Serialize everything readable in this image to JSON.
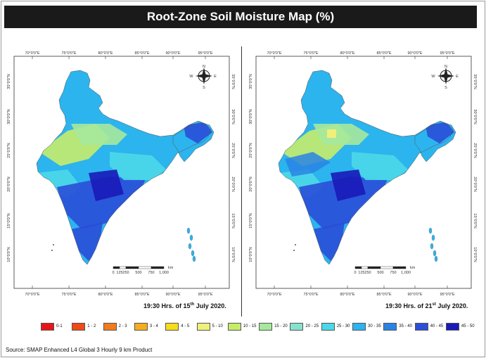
{
  "title": "Root-Zone Soil Moisture Map (%)",
  "maps": [
    {
      "caption_prefix": "19:30 Hrs. of 15",
      "caption_sup": "th",
      "caption_suffix": " July 2020."
    },
    {
      "caption_prefix": "19:30 Hrs. of 21",
      "caption_sup": "st",
      "caption_suffix": " July 2020."
    }
  ],
  "longitude_ticks": [
    "70°0'0\"E",
    "75°0'0\"E",
    "80°0'0\"E",
    "85°0'0\"E",
    "90°0'0\"E",
    "95°0'0\"E"
  ],
  "latitude_ticks": [
    "35°0'0\"N",
    "30°0'0\"N",
    "25°0'0\"N",
    "20°0'0\"N",
    "15°0'0\"N",
    "10°0'0\"N"
  ],
  "compass": {
    "n": "N",
    "s": "S",
    "e": "E",
    "w": "W"
  },
  "scale_bar": {
    "labels": [
      "0",
      "125",
      "250",
      "500",
      "750",
      "1,000"
    ],
    "unit": "km"
  },
  "legend": [
    {
      "label": "0-1",
      "color": "#e8141c"
    },
    {
      "label": "1 - 2",
      "color": "#f04a16"
    },
    {
      "label": "2 - 3",
      "color": "#f27c1c"
    },
    {
      "label": "3 - 4",
      "color": "#f4ac20"
    },
    {
      "label": "4 - 5",
      "color": "#f6dc1a"
    },
    {
      "label": "5 - 10",
      "color": "#eef07a"
    },
    {
      "label": "10 - 15",
      "color": "#c6ec6a"
    },
    {
      "label": "15 - 20",
      "color": "#a6e89c"
    },
    {
      "label": "20 - 25",
      "color": "#86e2cc"
    },
    {
      "label": "25 - 30",
      "color": "#4cd8e8"
    },
    {
      "label": "30 - 35",
      "color": "#2cb4ee"
    },
    {
      "label": "35 - 40",
      "color": "#2a84e4"
    },
    {
      "label": "40 - 45",
      "color": "#2a4ed8"
    },
    {
      "label": "45 - 50",
      "color": "#1a1ab8"
    }
  ],
  "source": "Source: SMAP Enhanced L4 Global 3 Hourly 9 km Product"
}
